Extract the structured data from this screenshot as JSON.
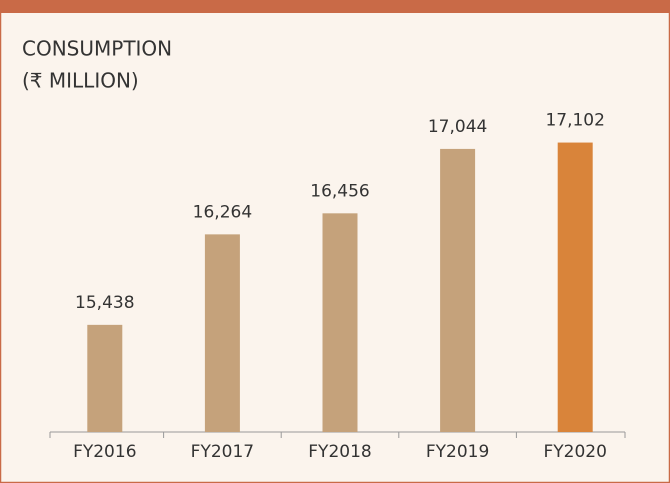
{
  "chart_data": {
    "type": "bar",
    "title": [
      "CONSUMPTION",
      "(₹ MILLION)"
    ],
    "categories": [
      "FY2016",
      "FY2017",
      "FY2018",
      "FY2019",
      "FY2020"
    ],
    "values": [
      15438,
      16264,
      16456,
      17044,
      17102
    ],
    "value_labels": [
      "15,438",
      "16,264",
      "16,456",
      "17,044",
      "17,102"
    ],
    "colors": [
      "#c5a27b",
      "#c5a27b",
      "#c5a27b",
      "#c5a27b",
      "#d9843a"
    ],
    "ylim": [
      14460,
      17600
    ],
    "grid": false
  }
}
